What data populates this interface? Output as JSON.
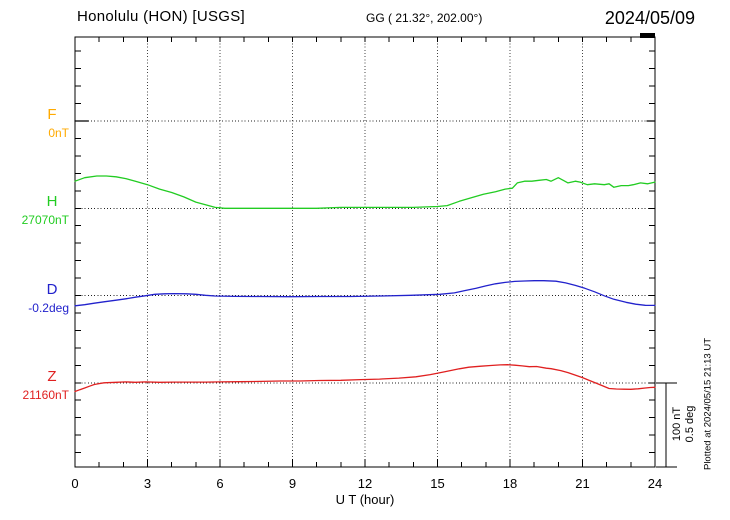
{
  "header": {
    "station_title": "Honolulu (HON)  [USGS]",
    "geo_coords": "GG ( 21.32°, 202.00°)",
    "date": "2024/05/09"
  },
  "scale_bar": {
    "labels": [
      "100 nT",
      "0.5 deg"
    ]
  },
  "plotted_note": "Plotted at 2024/05/15 21:13 UT",
  "channels": [
    {
      "label": "F",
      "baseline_label": "0nT",
      "color": "#FFAA00"
    },
    {
      "label": "H",
      "baseline_label": "27070nT",
      "color": "#22CC22"
    },
    {
      "label": "D",
      "baseline_label": "-0.2deg",
      "color": "#2222CC"
    },
    {
      "label": "Z",
      "baseline_label": "21160nT",
      "color": "#E02020"
    }
  ],
  "chart_data": {
    "type": "line",
    "title": "Honolulu (HON) [USGS] magnetogram",
    "date": "2024/05/09",
    "xlabel": "U T (hour)",
    "x_range": [
      0,
      24
    ],
    "x_ticks": [
      0,
      3,
      6,
      9,
      12,
      15,
      18,
      21,
      24
    ],
    "grid": "dotted vertical at 3h intervals, dotted horizontal at each channel baseline",
    "scale_per_division": {
      "nT": 100,
      "deg": 0.5
    },
    "minor_tick_step": {
      "nT": 20,
      "deg": 0.1
    },
    "series": [
      {
        "name": "F",
        "unit": "nT",
        "baseline": 0,
        "row": 0,
        "color": "#000000",
        "points": [
          [
            0,
            0
          ],
          [
            0.55,
            0
          ],
          null,
          [
            23.67,
            0
          ],
          [
            24,
            0
          ]
        ]
      },
      {
        "name": "H",
        "unit": "nT",
        "baseline": 27070,
        "row": 1,
        "color": "#22CC22",
        "points": [
          [
            0,
            27101
          ],
          [
            0.4,
            27105
          ],
          [
            0.9,
            27107
          ],
          [
            1.3,
            27107
          ],
          [
            1.7,
            27106
          ],
          [
            2.1,
            27104
          ],
          [
            2.5,
            27101
          ],
          [
            3.0,
            27097
          ],
          [
            3.5,
            27092
          ],
          [
            4.0,
            27088
          ],
          [
            4.5,
            27083
          ],
          [
            5.0,
            27077
          ],
          [
            5.4,
            27074
          ],
          [
            5.8,
            27071
          ],
          [
            6.2,
            27070
          ],
          [
            7.0,
            27070
          ],
          [
            8.0,
            27070
          ],
          [
            9.0,
            27070
          ],
          [
            10.0,
            27070
          ],
          [
            11.0,
            27071
          ],
          [
            12.0,
            27071
          ],
          [
            13.0,
            27071
          ],
          [
            14.0,
            27071
          ],
          [
            15.0,
            27072
          ],
          [
            15.4,
            27073
          ],
          [
            15.9,
            27078
          ],
          [
            16.4,
            27082
          ],
          [
            16.9,
            27086
          ],
          [
            17.4,
            27089
          ],
          [
            17.8,
            27092
          ],
          [
            18.1,
            27093
          ],
          [
            18.3,
            27099
          ],
          [
            18.6,
            27101
          ],
          [
            18.9,
            27101
          ],
          [
            19.2,
            27102
          ],
          [
            19.5,
            27103
          ],
          [
            19.7,
            27101
          ],
          [
            20.0,
            27105
          ],
          [
            20.2,
            27102
          ],
          [
            20.4,
            27099
          ],
          [
            20.7,
            27101
          ],
          [
            20.9,
            27100
          ],
          [
            21.2,
            27097
          ],
          [
            21.5,
            27098
          ],
          [
            21.9,
            27097
          ],
          [
            22.1,
            27098
          ],
          [
            22.3,
            27094
          ],
          [
            22.6,
            27096
          ],
          [
            22.9,
            27096
          ],
          [
            23.1,
            27097
          ],
          [
            23.4,
            27099
          ],
          [
            23.7,
            27098
          ],
          [
            24.0,
            27100
          ]
        ]
      },
      {
        "name": "D",
        "unit": "deg",
        "baseline": -0.2,
        "row": 2,
        "color": "#2222CC",
        "points": [
          [
            0,
            -0.259
          ],
          [
            0.4,
            -0.253
          ],
          [
            0.8,
            -0.244
          ],
          [
            1.2,
            -0.236
          ],
          [
            1.7,
            -0.227
          ],
          [
            2.1,
            -0.219
          ],
          [
            2.5,
            -0.21
          ],
          [
            2.9,
            -0.202
          ],
          [
            3.3,
            -0.193
          ],
          [
            3.7,
            -0.19
          ],
          [
            4.1,
            -0.189
          ],
          [
            4.6,
            -0.19
          ],
          [
            5.0,
            -0.193
          ],
          [
            5.4,
            -0.199
          ],
          [
            5.8,
            -0.203
          ],
          [
            6.6,
            -0.205
          ],
          [
            7.7,
            -0.206
          ],
          [
            8.9,
            -0.207
          ],
          [
            10.1,
            -0.206
          ],
          [
            11.4,
            -0.206
          ],
          [
            12.6,
            -0.203
          ],
          [
            13.9,
            -0.199
          ],
          [
            15.1,
            -0.193
          ],
          [
            15.7,
            -0.185
          ],
          [
            16.1,
            -0.173
          ],
          [
            16.6,
            -0.159
          ],
          [
            17.0,
            -0.145
          ],
          [
            17.4,
            -0.133
          ],
          [
            17.8,
            -0.125
          ],
          [
            18.2,
            -0.119
          ],
          [
            18.6,
            -0.117
          ],
          [
            19.0,
            -0.115
          ],
          [
            19.4,
            -0.115
          ],
          [
            19.9,
            -0.118
          ],
          [
            20.3,
            -0.128
          ],
          [
            20.7,
            -0.142
          ],
          [
            21.1,
            -0.159
          ],
          [
            21.5,
            -0.179
          ],
          [
            21.9,
            -0.202
          ],
          [
            22.3,
            -0.222
          ],
          [
            22.8,
            -0.239
          ],
          [
            23.2,
            -0.25
          ],
          [
            23.6,
            -0.256
          ],
          [
            24.0,
            -0.257
          ]
        ]
      },
      {
        "name": "Z",
        "unit": "nT",
        "baseline": 21160,
        "row": 3,
        "color": "#E02020",
        "points": [
          [
            0,
            21150
          ],
          [
            0.2,
            21152
          ],
          [
            0.4,
            21154
          ],
          [
            0.6,
            21156
          ],
          [
            0.8,
            21158
          ],
          [
            1.0,
            21159
          ],
          [
            1.2,
            21160
          ],
          [
            1.7,
            21160.5
          ],
          [
            2.1,
            21161
          ],
          [
            2.5,
            21160.5
          ],
          [
            2.9,
            21161
          ],
          [
            3.5,
            21160.5
          ],
          [
            4.1,
            21160.7
          ],
          [
            4.8,
            21160.8
          ],
          [
            5.4,
            21160.8
          ],
          [
            6.0,
            21161
          ],
          [
            6.8,
            21161.2
          ],
          [
            7.7,
            21161.5
          ],
          [
            8.5,
            21162
          ],
          [
            9.3,
            21162
          ],
          [
            10.1,
            21162.6
          ],
          [
            11.0,
            21162.8
          ],
          [
            11.8,
            21163.6
          ],
          [
            12.6,
            21164.2
          ],
          [
            13.4,
            21165.3
          ],
          [
            14.1,
            21166.8
          ],
          [
            14.7,
            21169.3
          ],
          [
            15.3,
            21172.7
          ],
          [
            15.9,
            21176
          ],
          [
            16.3,
            21177.8
          ],
          [
            16.8,
            21179
          ],
          [
            17.2,
            21179.8
          ],
          [
            17.6,
            21180.5
          ],
          [
            17.9,
            21180.7
          ],
          [
            18.2,
            21180.1
          ],
          [
            18.5,
            21179.3
          ],
          [
            18.8,
            21178.4
          ],
          [
            19.1,
            21178.6
          ],
          [
            19.5,
            21176.7
          ],
          [
            19.7,
            21176.1
          ],
          [
            20.1,
            21173.9
          ],
          [
            20.4,
            21171.6
          ],
          [
            20.7,
            21168.8
          ],
          [
            21.0,
            21165.9
          ],
          [
            21.3,
            21162.5
          ],
          [
            21.6,
            21159.1
          ],
          [
            21.9,
            21155.7
          ],
          [
            22.1,
            21153.4
          ],
          [
            22.4,
            21152.8
          ],
          [
            22.7,
            21152.6
          ],
          [
            23.0,
            21152.5
          ],
          [
            23.3,
            21153.1
          ],
          [
            23.6,
            21154
          ],
          [
            23.8,
            21154.5
          ],
          [
            24.0,
            21154.8
          ]
        ]
      }
    ]
  }
}
